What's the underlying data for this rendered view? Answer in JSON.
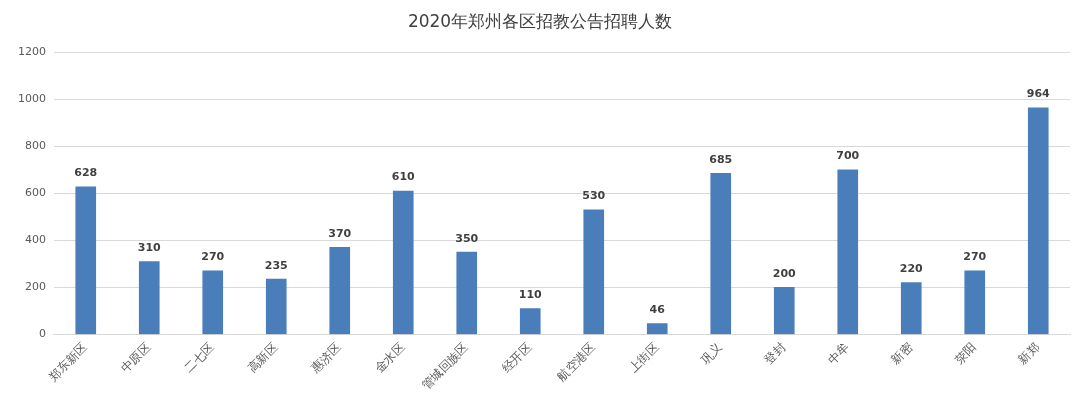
{
  "chart_data": {
    "type": "bar",
    "title": "2020年郑州各区招教公告招聘人数",
    "categories": [
      "郑东新区",
      "中原区",
      "二七区",
      "高新区",
      "惠济区",
      "金水区",
      "管城回族区",
      "经开区",
      "航空港区",
      "上街区",
      "巩义",
      "登封",
      "中牟",
      "新密",
      "荥阳",
      "新郑"
    ],
    "values": [
      628,
      310,
      270,
      235,
      370,
      610,
      350,
      110,
      530,
      46,
      685,
      200,
      700,
      220,
      270,
      964
    ],
    "color": "#4a7ebb",
    "ylim": [
      0,
      1200
    ],
    "yticks": [
      0,
      200,
      400,
      600,
      800,
      1000,
      1200
    ],
    "grid": "y",
    "data_labels": true,
    "legend": false
  }
}
